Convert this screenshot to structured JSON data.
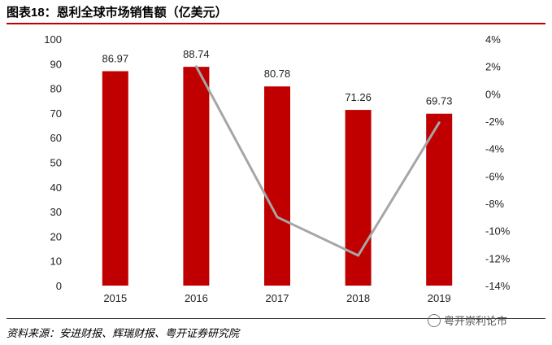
{
  "title": "图表18：恩利全球市场销售额（亿美元）",
  "source": "资料来源：安进财报、辉瑞财报、粤开证券研究院",
  "watermark": "粤开崇利论市",
  "chart_data": {
    "type": "bar",
    "categories": [
      "2015",
      "2016",
      "2017",
      "2018",
      "2019"
    ],
    "series": [
      {
        "type": "bar",
        "axis": "left",
        "color": "#c00000",
        "values": [
          86.97,
          88.74,
          80.78,
          71.26,
          69.73
        ],
        "data_labels": [
          "86.97",
          "88.74",
          "80.78",
          "71.26",
          "69.73"
        ]
      },
      {
        "type": "line",
        "axis": "right",
        "color": "#a6a6a6",
        "x": [
          "2016",
          "2017",
          "2018",
          "2019"
        ],
        "values": [
          2.0,
          -9.0,
          -11.8,
          -2.1
        ]
      }
    ],
    "y_left": {
      "min": 0,
      "max": 100,
      "step": 10,
      "tick_labels": [
        "0",
        "10",
        "20",
        "30",
        "40",
        "50",
        "60",
        "70",
        "80",
        "90",
        "100"
      ]
    },
    "y_right": {
      "min": -14,
      "max": 4,
      "step": 2,
      "tick_labels": [
        "-14%",
        "-12%",
        "-10%",
        "-8%",
        "-6%",
        "-4%",
        "-2%",
        "0%",
        "2%",
        "4%"
      ]
    },
    "grid": false,
    "legend": "none"
  }
}
